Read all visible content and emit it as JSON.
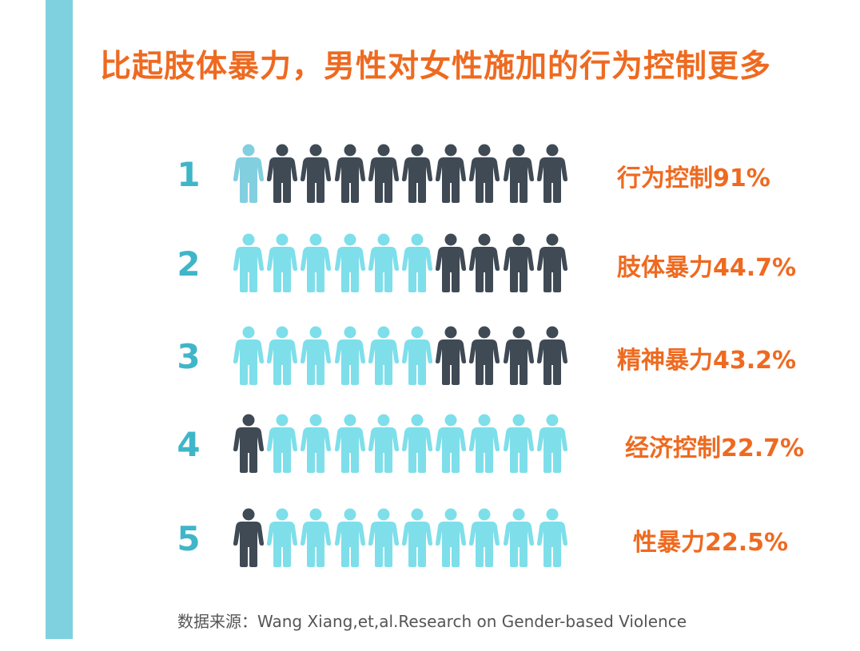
{
  "title": "比起肢体暴力，男性对女性施加的行为控制更多",
  "source": "数据来源：Wang Xiang,et,al.Research on Gender-based Violence",
  "colors": {
    "highlight": "#7edfea",
    "highlight_first_row": "#82cfe0",
    "base": "#3f4a55",
    "title": "#ee6a20",
    "rank": "#3fb6c8",
    "side_bar": "#7fd1df"
  },
  "chart_data": {
    "type": "pictogram",
    "icon": "person-icon",
    "icons_per_row": 10,
    "series": [
      {
        "rank": "1",
        "label": "行为控制91%",
        "category": "行为控制",
        "value": 91,
        "highlighted_icons": 1,
        "highlight_position": "left"
      },
      {
        "rank": "2",
        "label": "肢体暴力44.7%",
        "category": "肢体暴力",
        "value": 44.7,
        "highlighted_icons": 6,
        "highlight_position": "left"
      },
      {
        "rank": "3",
        "label": "精神暴力43.2%",
        "category": "精神暴力",
        "value": 43.2,
        "highlighted_icons": 6,
        "highlight_position": "left"
      },
      {
        "rank": "4",
        "label": "经济控制22.7%",
        "category": "经济控制",
        "value": 22.7,
        "highlighted_icons": 9,
        "highlight_position": "right"
      },
      {
        "rank": "5",
        "label": "性暴力22.5%",
        "category": "性暴力",
        "value": 22.5,
        "highlighted_icons": 9,
        "highlight_position": "right"
      }
    ]
  }
}
